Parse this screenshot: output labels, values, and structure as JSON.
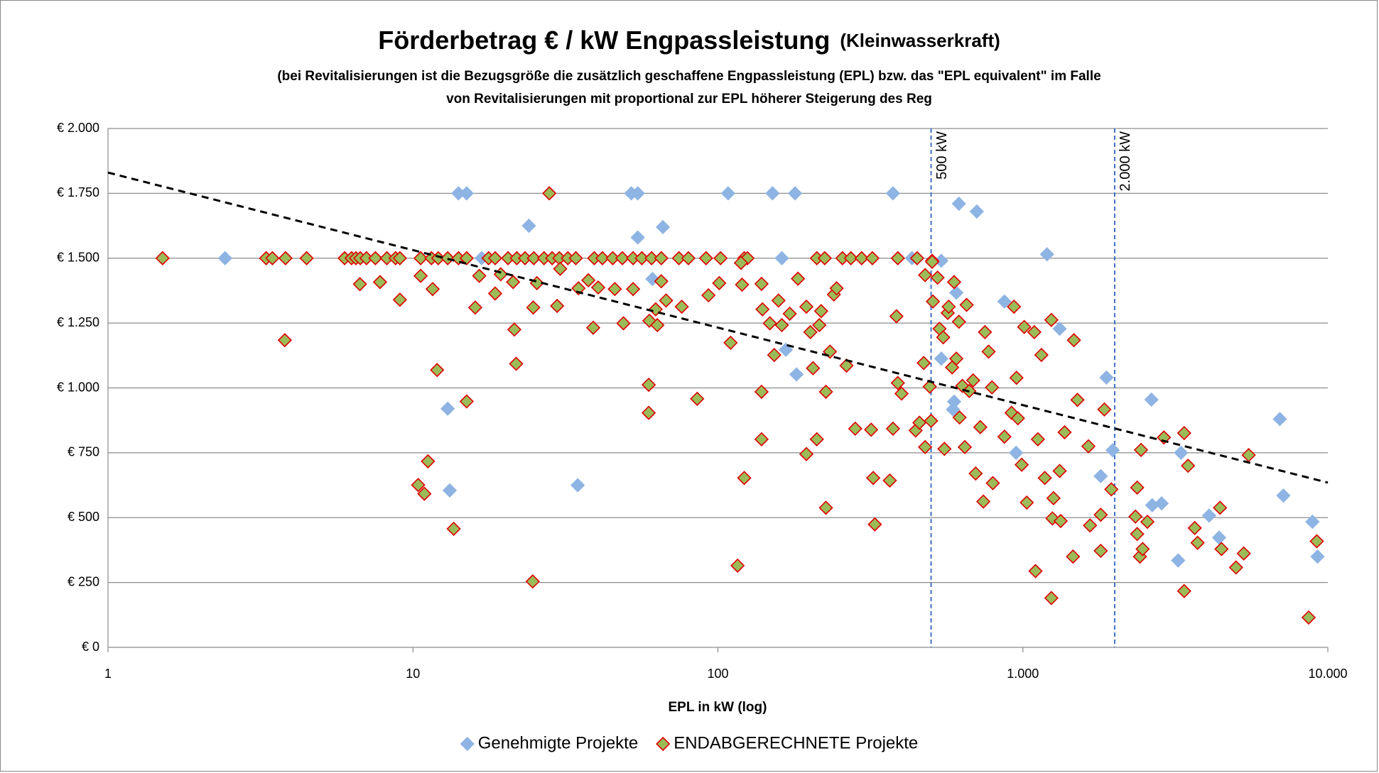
{
  "chart_data": {
    "type": "scatter",
    "title": "Förderbetrag  € / kW Engpassleistung",
    "title_suffix": "(Kleinwasserkraft)",
    "subtitle": [
      "(bei Revitalisierungen ist die Bezugsgröße die zusätzlich geschaffene Engpassleistung (EPL) bzw. das \"EPL equivalent\" im Falle",
      "von Revitalisierungen mit proportional zur EPL höherer Steigerung des Reg"
    ],
    "x_label": "EPL in kW (log)",
    "x_log": true,
    "grid": true,
    "legend": "bottom",
    "xlim": [
      1,
      10000
    ],
    "xticks": [
      1,
      10,
      100,
      {
        "value": 1000,
        "label": "1.000"
      },
      {
        "value": 10000,
        "label": "10.000"
      }
    ],
    "ylim": [
      0,
      2000
    ],
    "yticks": [
      {
        "value": 0,
        "label": "€ 0"
      },
      {
        "value": 250,
        "label": "€ 250"
      },
      {
        "value": 500,
        "label": "€ 500"
      },
      {
        "value": 750,
        "label": "€ 750"
      },
      {
        "value": 1000,
        "label": "€ 1.000"
      },
      {
        "value": 1250,
        "label": "€ 1.250"
      },
      {
        "value": 1500,
        "label": "€ 1.500"
      },
      {
        "value": 1750,
        "label": "€ 1.750"
      },
      {
        "value": 2000,
        "label": "€ 2.000"
      }
    ],
    "reference_lines": [
      {
        "x": 500,
        "label": "500 kW",
        "color": "#4472c4"
      },
      {
        "x": 2000,
        "label": "2.000 kW",
        "color": "#4472c4"
      }
    ],
    "trendline": {
      "x": [
        1,
        10000
      ],
      "y": [
        1830,
        635
      ],
      "color": "#000000"
    },
    "series": [
      {
        "name": "Genehmigte Projekte",
        "color": "#8eb4e3",
        "edge": "#8eb4e3",
        "x": [
          2.42,
          14.1,
          15.0,
          16.8,
          24,
          52,
          54.6,
          54.6,
          66,
          61,
          108,
          151,
          179,
          162,
          375,
          433,
          617,
          706,
          605,
          540,
          1200,
          870,
          13.0,
          13.2,
          34.7,
          167,
          181,
          540,
          595,
          590,
          1320,
          950,
          1880,
          1970,
          1800,
          2640,
          2655,
          2850,
          3230,
          4080,
          4400,
          6960,
          7150,
          8900,
          9250,
          3300
        ],
        "values": [
          1500,
          1750,
          1750,
          1500,
          1625,
          1750,
          1750,
          1580,
          1620,
          1420,
          1750,
          1750,
          1750,
          1500,
          1750,
          1500,
          1710,
          1680,
          1367,
          1490,
          1515,
          1333,
          920,
          605,
          625,
          1147,
          1052,
          1113,
          947,
          917,
          1228,
          750,
          1040,
          760,
          660,
          955,
          548,
          555,
          335,
          508,
          423,
          880,
          585,
          484,
          350,
          750
        ]
      },
      {
        "name": "ENDABGERECHNETE Projekte",
        "color": "#9bbb59",
        "edge": "#e00000",
        "x": [
          1.51,
          3.3,
          3.46,
          3.82,
          4.48,
          5.97,
          6.29,
          6.5,
          6.72,
          7.04,
          7.53,
          8.21,
          8.77,
          9.06,
          10.6,
          11.5,
          12.1,
          13.0,
          14.1,
          15.0,
          17.7,
          18.6,
          20.5,
          21.9,
          23.3,
          24.9,
          26.9,
          28.6,
          30.2,
          32.2,
          34.2,
          39.3,
          41.8,
          45.2,
          48.6,
          52.7,
          56.3,
          60.6,
          65.2,
          74.5,
          80.0,
          91.4,
          102,
          122,
          125,
          211,
          224,
          256,
          273,
          296,
          321,
          389,
          450,
          504,
          3.8,
          6.7,
          7.8,
          9.06,
          10.6,
          11.6,
          12.0,
          11.2,
          10.4,
          10.9,
          13.6,
          15.0,
          16.0,
          16.5,
          18.6,
          19.4,
          21.5,
          21.8,
          21.3,
          24.8,
          25.5,
          28.0,
          24.7,
          29.7,
          30.4,
          34.9,
          37.6,
          39,
          40.5,
          45.9,
          49,
          52.7,
          59.3,
          59.3,
          59.6,
          63.3,
          62.5,
          65.2,
          67.6,
          76.1,
          85.5,
          93.1,
          101,
          110,
          119,
          120,
          122,
          116,
          139,
          139,
          140,
          139,
          148,
          153,
          158,
          162,
          172,
          183,
          195,
          195,
          201,
          205,
          211,
          215,
          218,
          226,
          226,
          233,
          240,
          245,
          264,
          282,
          318,
          323,
          327,
          366,
          375,
          385,
          389,
          400,
          445,
          458,
          473,
          478,
          495,
          500,
          478,
          504,
          507,
          525,
          533,
          548,
          553,
          567,
          571,
          595,
          586,
          617,
          605,
          620,
          633,
          645,
          654,
          667,
          687,
          700,
          725,
          742,
          751,
          772,
          792,
          797,
          870,
          918,
          935,
          953,
          963,
          991,
          1010,
          1030,
          1090,
          1100,
          1120,
          1150,
          1180,
          1240,
          1260,
          1250,
          1240,
          1320,
          1330,
          1370,
          1470,
          1460,
          1510,
          1640,
          1660,
          1800,
          1800,
          1850,
          1950,
          2340,
          2370,
          2420,
          2470,
          2370,
          2440,
          2560,
          2900,
          3380,
          3380,
          3480,
          3660,
          3740,
          4430,
          4480,
          5000,
          5300,
          5500,
          8650,
          9200
        ],
        "values": [
          1500,
          1500,
          1500,
          1500,
          1500,
          1500,
          1500,
          1500,
          1500,
          1500,
          1500,
          1500,
          1500,
          1500,
          1500,
          1500,
          1500,
          1500,
          1500,
          1500,
          1500,
          1500,
          1500,
          1500,
          1500,
          1500,
          1500,
          1500,
          1500,
          1500,
          1500,
          1500,
          1500,
          1500,
          1500,
          1500,
          1500,
          1500,
          1500,
          1500,
          1500,
          1500,
          1500,
          1500,
          1500,
          1500,
          1500,
          1500,
          1500,
          1500,
          1500,
          1500,
          1500,
          1490,
          1184,
          1400,
          1408,
          1340,
          1432,
          1381,
          1069,
          717,
          626,
          592,
          457,
          948,
          1310,
          1432,
          1364,
          1438,
          1225,
          1093,
          1408,
          1310,
          1404,
          1750,
          254,
          1316,
          1459,
          1384,
          1415,
          1232,
          1387,
          1381,
          1249,
          1381,
          904,
          1012,
          1259,
          1242,
          1303,
          1411,
          1337,
          1313,
          958,
          1357,
          1404,
          1174,
          1482,
          1398,
          653,
          315,
          802,
          985,
          1303,
          1401,
          1249,
          1127,
          1337,
          1242,
          1286,
          1421,
          1313,
          745,
          1215,
          1076,
          802,
          1242,
          1296,
          538,
          985,
          1140,
          1360,
          1384,
          1086,
          843,
          839,
          653,
          474,
          643,
          843,
          1276,
          1019,
          978,
          836,
          866,
          1096,
          772,
          1005,
          873,
          1435,
          1486,
          1333,
          1425,
          1228,
          1195,
          765,
          1289,
          1313,
          1408,
          1079,
          1255,
          1113,
          886,
          1008,
          772,
          1320,
          988,
          1029,
          670,
          849,
          562,
          1215,
          1140,
          1002,
          633,
          812,
          904,
          1313,
          1039,
          883,
          704,
          1235,
          558,
          1215,
          294,
          802,
          1127,
          653,
          1262,
          575,
          497,
          190,
          680,
          487,
          829,
          1184,
          350,
          954,
          775,
          470,
          372,
          511,
          917,
          609,
          504,
          437,
          350,
          379,
          616,
          761,
          484,
          809,
          826,
          217,
          700,
          460,
          403,
          538,
          379,
          308,
          362,
          741,
          115,
          409
        ]
      }
    ]
  }
}
